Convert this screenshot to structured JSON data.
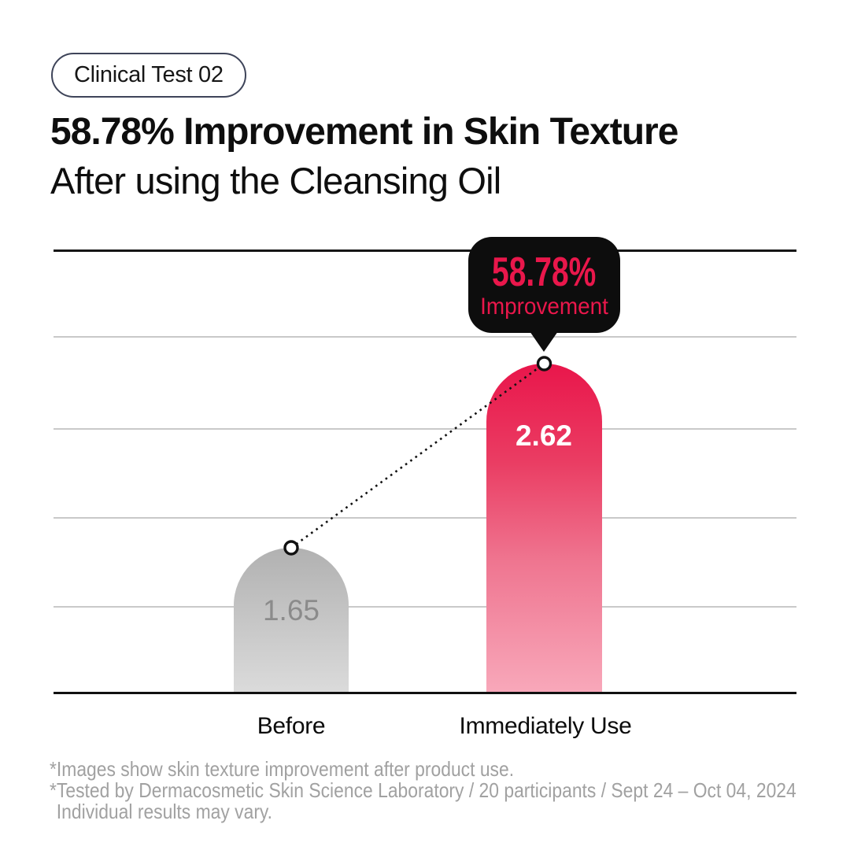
{
  "badge": {
    "label": "Clinical Test 02"
  },
  "title": {
    "line1": "58.78% Improvement in Skin Texture",
    "line2": "After using the Cleansing Oil"
  },
  "callout": {
    "percent": "58.78%",
    "label": "Improvement"
  },
  "chart_data": {
    "type": "bar",
    "title": "58.78% Improvement in Skin Texture After using the Cleansing Oil",
    "categories": [
      "Before",
      "Immediately Use"
    ],
    "values": [
      1.65,
      2.62
    ],
    "value_labels": [
      "1.65",
      "2.62"
    ],
    "annotation": {
      "percent": "58.78%",
      "label": "Improvement",
      "style": "black-speech-bubble-over-second-bar"
    },
    "connector": "dotted line with circle markers joining the two bar tops",
    "y_axis_labels_visible": false,
    "gridlines": 4,
    "legend": false,
    "bar_colors": {
      "before_gradient": [
        "#B1B1B1",
        "#DBDBDB"
      ],
      "after_gradient": [
        "#E9164B",
        "#F8A8BA"
      ]
    }
  },
  "footnotes": [
    "*Images show skin texture improvement after product use.",
    "*Tested by Dermacosmetic Skin Science Laboratory / 20 participants / Sept 24 – Oct 04, 2024",
    "Individual results may vary."
  ],
  "colors": {
    "accent_red": "#E9174B",
    "callout_bg": "#0D0D0D",
    "gridline": "#C9C9C9",
    "axis": "#101010",
    "value_gray": "#8B8B8B",
    "footnote_gray": "#A1A1A1",
    "badge_border": "#3E4459"
  }
}
